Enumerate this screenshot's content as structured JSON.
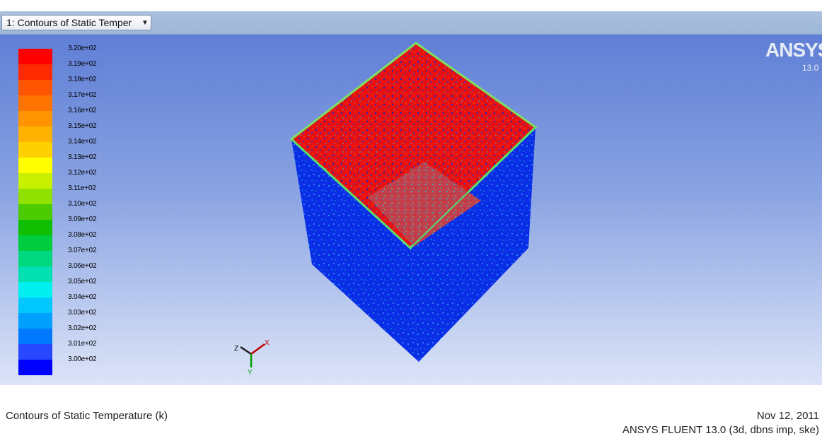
{
  "window": {
    "tab_label": "1: Contours of Static Temper"
  },
  "legend": {
    "labels": [
      "3.20e+02",
      "3.19e+02",
      "3.18e+02",
      "3.17e+02",
      "3.16e+02",
      "3.15e+02",
      "3.14e+02",
      "3.13e+02",
      "3.12e+02",
      "3.11e+02",
      "3.10e+02",
      "3.09e+02",
      "3.08e+02",
      "3.07e+02",
      "3.06e+02",
      "3.05e+02",
      "3.04e+02",
      "3.03e+02",
      "3.02e+02",
      "3.01e+02",
      "3.00e+02"
    ],
    "colors": [
      "#ff0000",
      "#ff2a00",
      "#ff5500",
      "#ff7400",
      "#ff9400",
      "#ffb200",
      "#ffd000",
      "#ffff00",
      "#c8f000",
      "#90e000",
      "#4ccc00",
      "#10c000",
      "#00cc40",
      "#00d880",
      "#00e0b0",
      "#00f0f0",
      "#00c8ff",
      "#00a0ff",
      "#0078ff",
      "#2848ff",
      "#0000ff"
    ]
  },
  "logo": {
    "main": "ANSYS",
    "sub": "13.0"
  },
  "axes": {
    "x_label": "X",
    "y_label": "Y",
    "z_label": "Z"
  },
  "footer": {
    "title": "Contours of Static Temperature (k)",
    "date": "Nov 12, 2011",
    "version": "ANSYS FLUENT 13.0 (3d, dbns imp, ske)"
  },
  "colors": {
    "cube_blue": "#0a2ee6",
    "cube_red": "#e81010",
    "viewport_top": "#5f7fd6",
    "viewport_bottom": "#dce4f8"
  }
}
